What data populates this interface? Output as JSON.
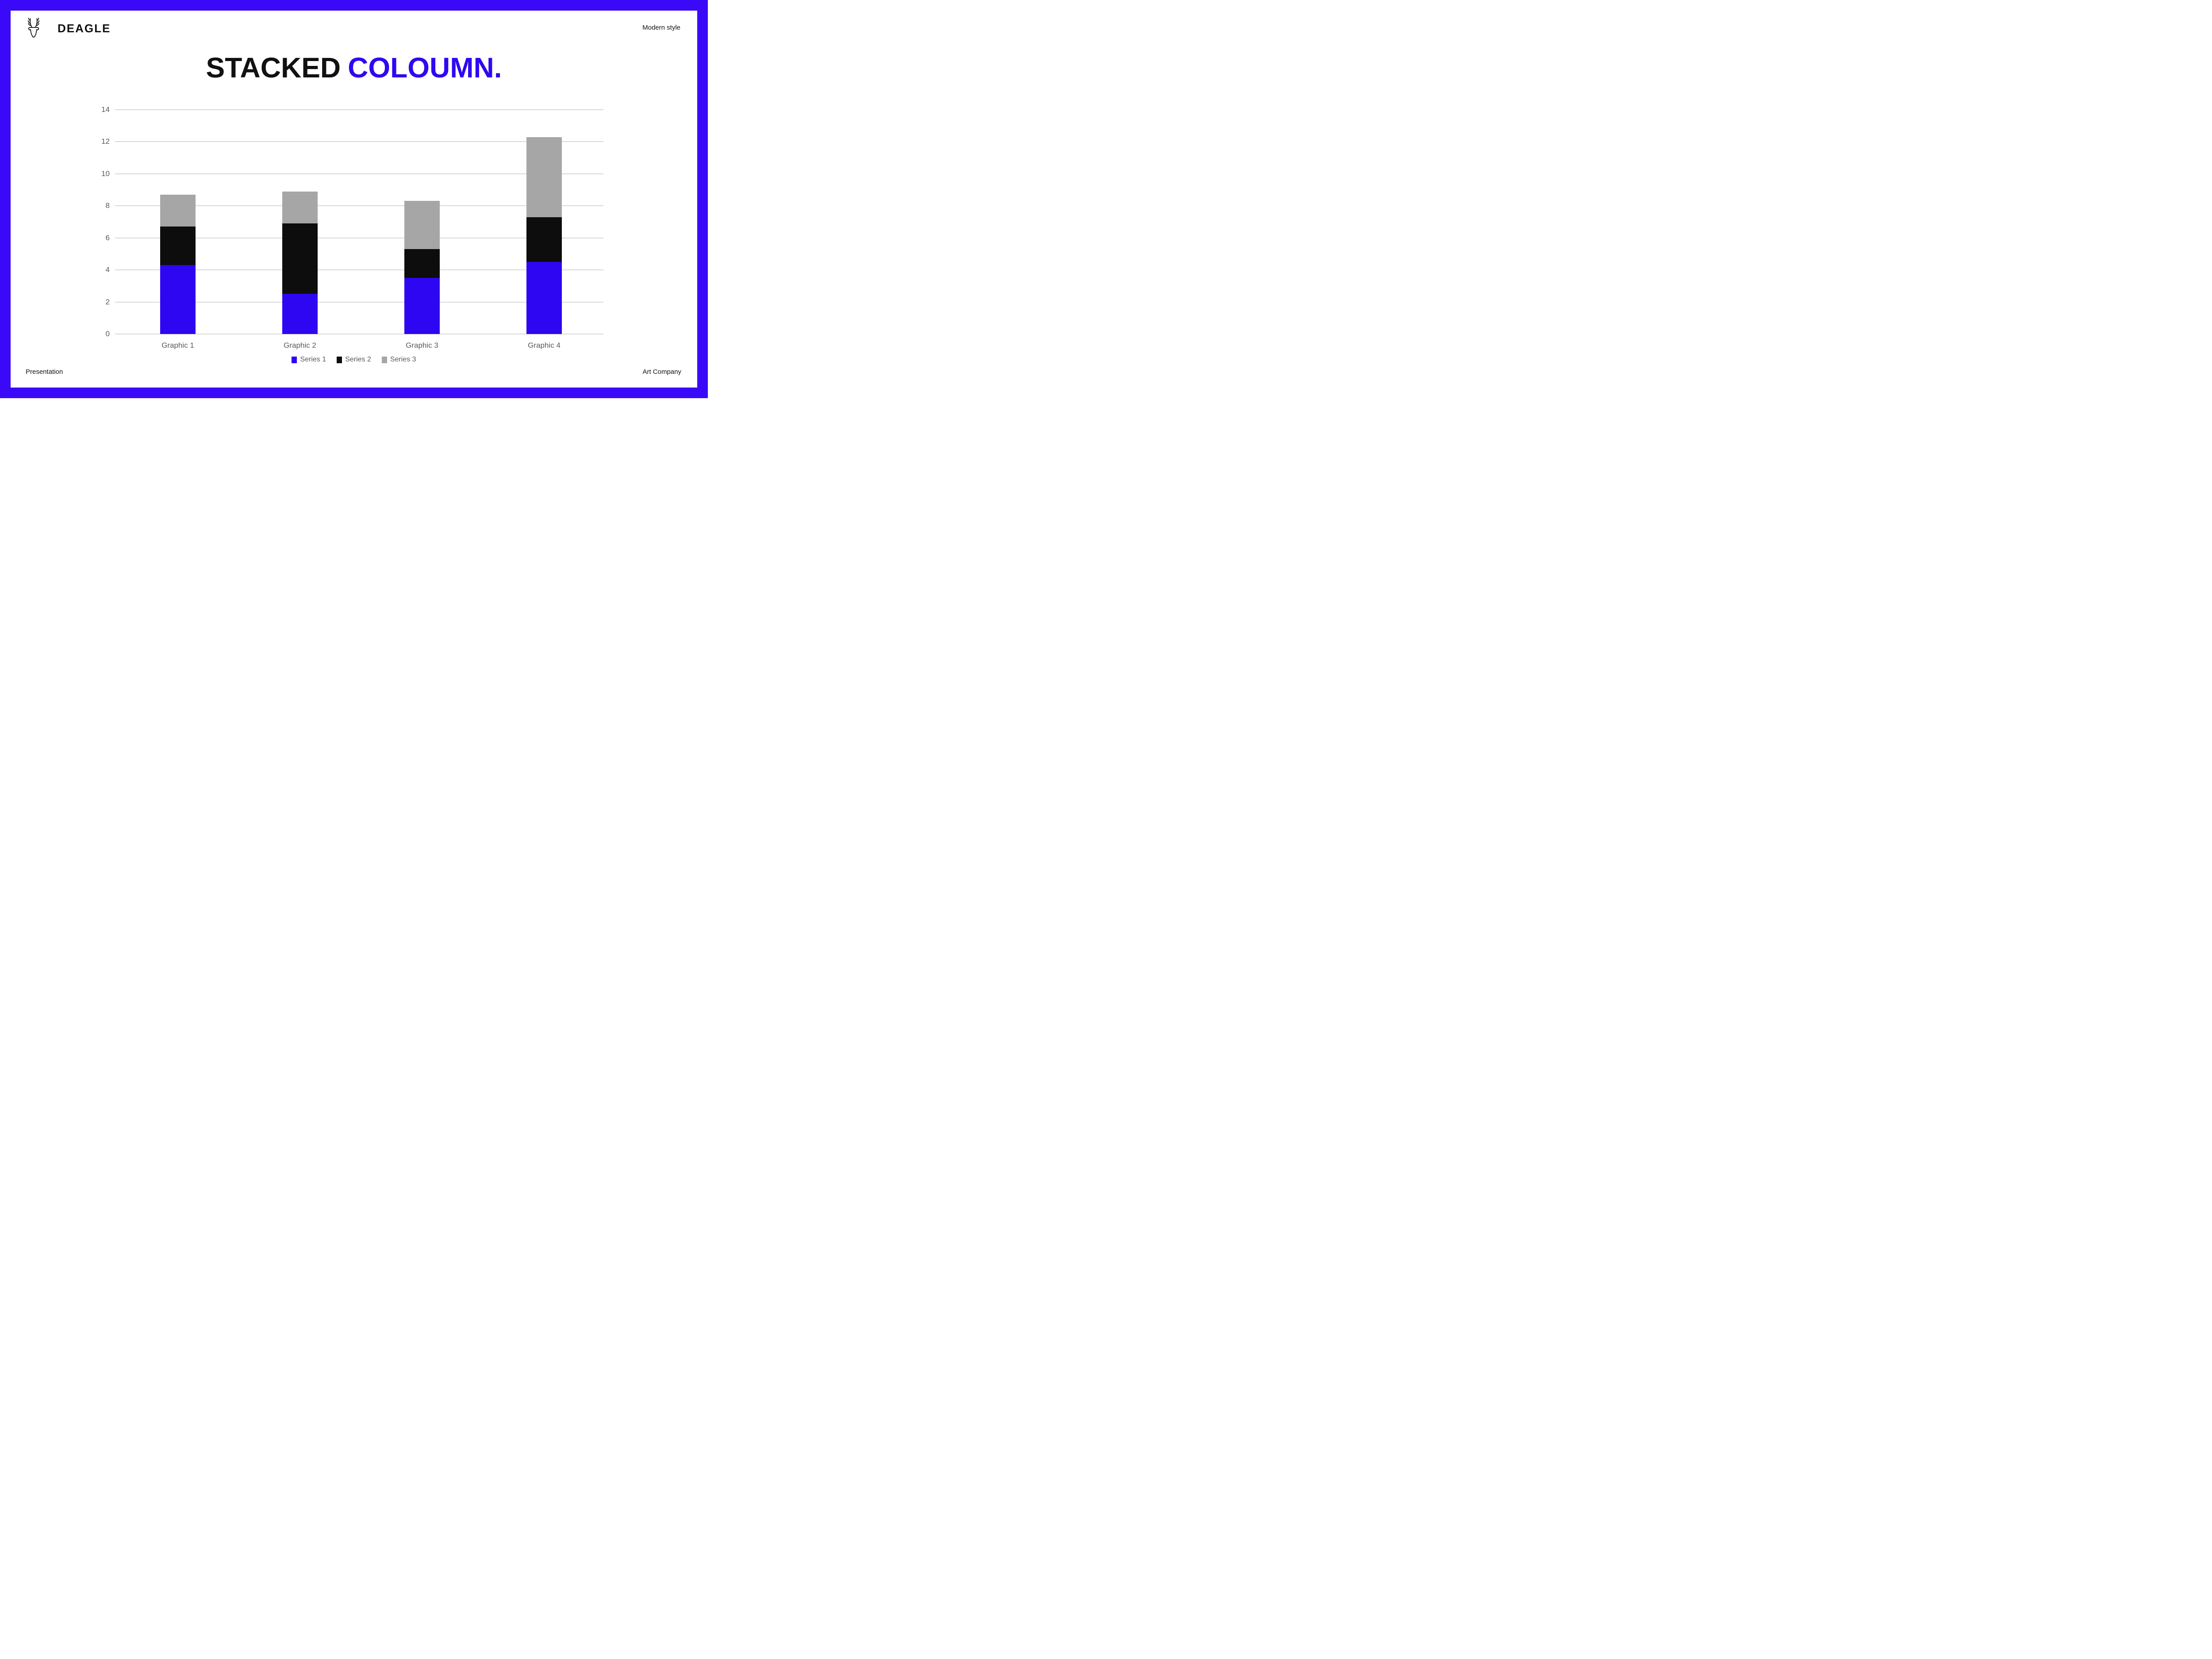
{
  "header": {
    "brand": "DEAGLE",
    "tagline": "Modern style",
    "logo_icon": "deer-logo-icon"
  },
  "title": {
    "part1": "STACKED",
    "part2": "COLOUMN."
  },
  "footer": {
    "left": "Presentation",
    "right": "Art Company"
  },
  "colors": {
    "border_blue": "#3A0AF8",
    "accent_blue": "#2F08F2",
    "grid": "#D9D9D9",
    "axis_text": "#595959"
  },
  "chart_data": {
    "type": "bar",
    "stacked": true,
    "title": "STACKED COLOUMN.",
    "categories": [
      "Graphic 1",
      "Graphic 2",
      "Graphic 3",
      "Graphic 4"
    ],
    "series": [
      {
        "name": "Series 1",
        "color": "#2E06F2",
        "values": [
          4.3,
          2.5,
          3.5,
          4.5
        ]
      },
      {
        "name": "Series 2",
        "color": "#0D0D0D",
        "values": [
          2.4,
          4.4,
          1.8,
          2.8
        ]
      },
      {
        "name": "Series 3",
        "color": "#A6A6A6",
        "values": [
          2.0,
          2.0,
          3.0,
          5.0
        ]
      }
    ],
    "xlabel": "",
    "ylabel": "",
    "ylim": [
      0,
      14
    ],
    "yticks": [
      0,
      2,
      4,
      6,
      8,
      10,
      12,
      14
    ],
    "grid": true,
    "legend_position": "bottom"
  }
}
